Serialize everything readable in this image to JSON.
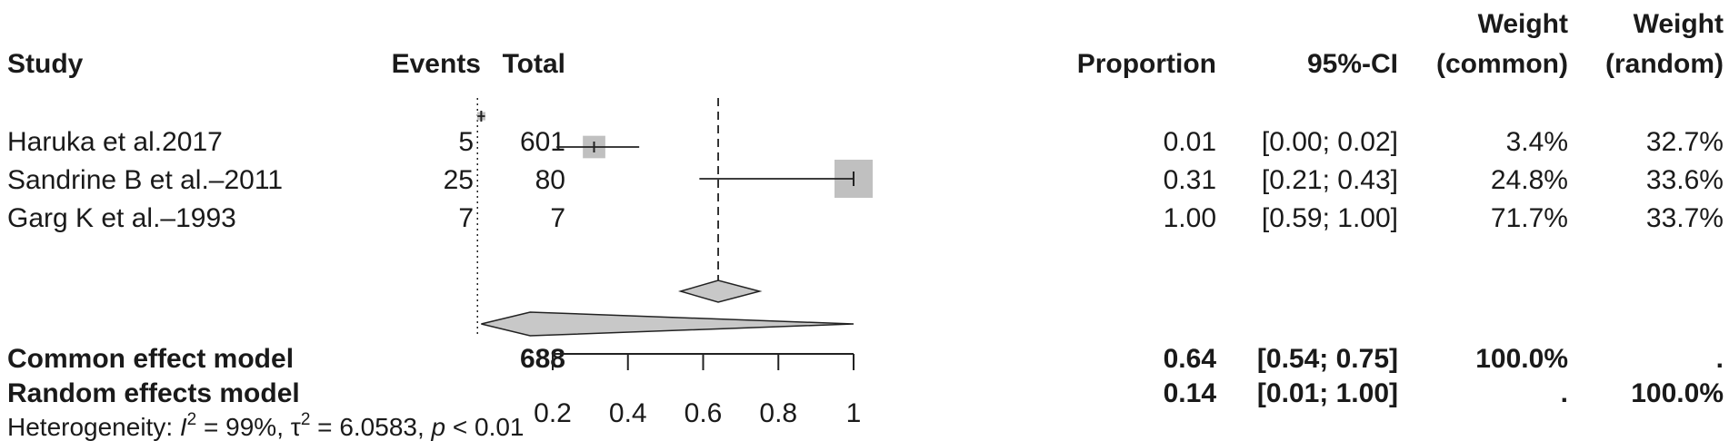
{
  "chart_data": {
    "type": "forest",
    "columns": {
      "study": "Study",
      "events": "Events",
      "total": "Total",
      "proportion": "Proportion",
      "ci": "95%-CI",
      "weight_common": [
        "Weight",
        "(common)"
      ],
      "weight_random": [
        "Weight",
        "(random)"
      ]
    },
    "studies": [
      {
        "study": "Haruka  et al.2017",
        "events": "5",
        "total": "601",
        "proportion": 0.01,
        "ci_low": 0.0,
        "ci_high": 0.02,
        "proportion_text": "0.01",
        "ci_text": "[0.00; 0.02]",
        "weight_common": "3.4%",
        "weight_random": "32.7%",
        "box_weight": 0.034
      },
      {
        "study": "Sandrine B et al.–2011",
        "events": "25",
        "total": "80",
        "proportion": 0.31,
        "ci_low": 0.21,
        "ci_high": 0.43,
        "proportion_text": "0.31",
        "ci_text": "[0.21; 0.43]",
        "weight_common": "24.8%",
        "weight_random": "33.6%",
        "box_weight": 0.248
      },
      {
        "study": "Garg K et al.–1993",
        "events": "7",
        "total": "7",
        "proportion": 1.0,
        "ci_low": 0.59,
        "ci_high": 1.0,
        "proportion_text": "1.00",
        "ci_text": "[0.59; 1.00]",
        "weight_common": "71.7%",
        "weight_random": "33.7%",
        "box_weight": 0.717
      }
    ],
    "pooled": [
      {
        "label": "Common effect model",
        "total": "688",
        "estimate": 0.64,
        "ci_low": 0.54,
        "ci_high": 0.75,
        "proportion_text": "0.64",
        "ci_text": "[0.54; 0.75]",
        "weight_common": "100.0%",
        "weight_random": "."
      },
      {
        "label": "Random effects model",
        "total": "",
        "estimate": 0.14,
        "ci_low": 0.01,
        "ci_high": 1.0,
        "proportion_text": "0.14",
        "ci_text": "[0.01; 1.00]",
        "weight_common": ".",
        "weight_random": "100.0%"
      }
    ],
    "heterogeneity": {
      "prefix": "Heterogeneity: ",
      "i2_symbol": "I",
      "i2_exp": "2",
      "i2_value": " = 99%, ",
      "tau2_symbol": "τ",
      "tau2_exp": "2",
      "tau2_value": " = 6.0583, ",
      "p_symbol": "p",
      "p_value": " < 0.01"
    },
    "x_axis": {
      "ticks": [
        0.2,
        0.4,
        0.6,
        0.8,
        1
      ],
      "tick_labels": [
        "0.2",
        "0.4",
        "0.6",
        "0.8",
        "1"
      ],
      "range": [
        0.2,
        1.0
      ]
    },
    "reference_lines": {
      "null_value": 0.0,
      "common_estimate": 0.64
    }
  }
}
